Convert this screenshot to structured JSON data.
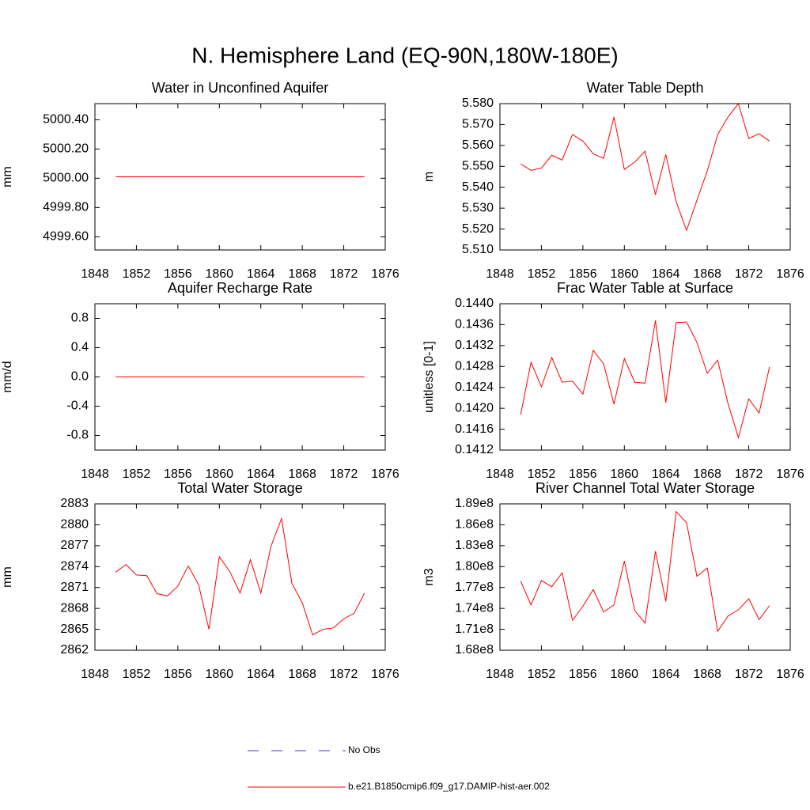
{
  "title": "N. Hemisphere Land (EQ-90N,180W-180E)",
  "legend": [
    {
      "name": "No Obs",
      "color": "#3a3ad0",
      "dashed": true
    },
    {
      "name": "b.e21.B1850cmip6.f09_g17.DAMIP-hist-aer.002",
      "color": "#ff0000",
      "dashed": false
    }
  ],
  "chart_data": [
    {
      "type": "line",
      "title": "Water in Unconfined Aquifer",
      "ylabel": "mm",
      "color": "#ff0000",
      "x": [
        1850,
        1851,
        1852,
        1853,
        1854,
        1855,
        1856,
        1857,
        1858,
        1859,
        1860,
        1861,
        1862,
        1863,
        1864,
        1865,
        1866,
        1867,
        1868,
        1869,
        1870,
        1871,
        1872,
        1873,
        1874
      ],
      "values": [
        5000.01,
        5000.01,
        5000.01,
        5000.01,
        5000.01,
        5000.01,
        5000.01,
        5000.01,
        5000.01,
        5000.01,
        5000.01,
        5000.01,
        5000.01,
        5000.01,
        5000.01,
        5000.01,
        5000.01,
        5000.01,
        5000.01,
        5000.01,
        5000.01,
        5000.01,
        5000.01,
        5000.01,
        5000.01
      ],
      "xlim": [
        1848,
        1876
      ],
      "xticks": [
        1848,
        1852,
        1856,
        1860,
        1864,
        1868,
        1872,
        1876
      ],
      "ylim": [
        4999.51,
        5000.51
      ],
      "yticks": [
        {
          "value": 4999.6,
          "label": "4999.60"
        },
        {
          "value": 4999.8,
          "label": "4999.80"
        },
        {
          "value": 5000,
          "label": "5000.00"
        },
        {
          "value": 5000.2,
          "label": "5000.20"
        },
        {
          "value": 5000.4,
          "label": "5000.40"
        }
      ]
    },
    {
      "type": "line",
      "title": "Water Table Depth",
      "ylabel": "m",
      "color": "#ff0000",
      "x": [
        1850,
        1851,
        1852,
        1853,
        1854,
        1855,
        1856,
        1857,
        1858,
        1859,
        1860,
        1861,
        1862,
        1863,
        1864,
        1865,
        1866,
        1867,
        1868,
        1869,
        1870,
        1871,
        1872,
        1873,
        1874
      ],
      "values": [
        5.5512,
        5.5481,
        5.5492,
        5.5553,
        5.553,
        5.5652,
        5.5621,
        5.556,
        5.5538,
        5.5736,
        5.5485,
        5.552,
        5.5573,
        5.5364,
        5.5557,
        5.533,
        5.5193,
        5.5338,
        5.5478,
        5.5652,
        5.5736,
        5.58,
        5.5633,
        5.5656,
        5.5621
      ],
      "xlim": [
        1848,
        1876
      ],
      "xticks": [
        1848,
        1852,
        1856,
        1860,
        1864,
        1868,
        1872,
        1876
      ],
      "ylim": [
        5.51,
        5.58
      ],
      "yticks": [
        {
          "value": 5.51,
          "label": "5.510"
        },
        {
          "value": 5.52,
          "label": "5.520"
        },
        {
          "value": 5.53,
          "label": "5.530"
        },
        {
          "value": 5.54,
          "label": "5.540"
        },
        {
          "value": 5.55,
          "label": "5.550"
        },
        {
          "value": 5.56,
          "label": "5.560"
        },
        {
          "value": 5.57,
          "label": "5.570"
        },
        {
          "value": 5.58,
          "label": "5.580"
        }
      ]
    },
    {
      "type": "line",
      "title": "Aquifer Recharge Rate",
      "ylabel": "mm/d",
      "color": "#ff0000",
      "x": [
        1850,
        1851,
        1852,
        1853,
        1854,
        1855,
        1856,
        1857,
        1858,
        1859,
        1860,
        1861,
        1862,
        1863,
        1864,
        1865,
        1866,
        1867,
        1868,
        1869,
        1870,
        1871,
        1872,
        1873,
        1874
      ],
      "values": [
        0,
        0,
        0,
        0,
        0,
        0,
        0,
        0,
        0,
        0,
        0,
        0,
        0,
        0,
        0,
        0,
        0,
        0,
        0,
        0,
        0,
        0,
        0,
        0,
        0
      ],
      "xlim": [
        1848,
        1876
      ],
      "xticks": [
        1848,
        1852,
        1856,
        1860,
        1864,
        1868,
        1872,
        1876
      ],
      "ylim": [
        -1,
        1
      ],
      "yticks": [
        -0.8,
        -0.4,
        {
          "value": 0,
          "label": "0.0"
        },
        0.4,
        0.8
      ]
    },
    {
      "type": "line",
      "title": "Frac Water Table at Surface",
      "ylabel": "unitless [0-1]",
      "color": "#ff0000",
      "x": [
        1850,
        1851,
        1852,
        1853,
        1854,
        1855,
        1856,
        1857,
        1858,
        1859,
        1860,
        1861,
        1862,
        1863,
        1864,
        1865,
        1866,
        1867,
        1868,
        1869,
        1870,
        1871,
        1872,
        1873,
        1874
      ],
      "values": [
        0.14188,
        0.14288,
        0.14241,
        0.14297,
        0.1425,
        0.14252,
        0.14227,
        0.14311,
        0.14285,
        0.14208,
        0.14295,
        0.1425,
        0.14248,
        0.14368,
        0.14211,
        0.14364,
        0.14365,
        0.14326,
        0.14267,
        0.14292,
        0.14209,
        0.14144,
        0.14218,
        0.14191,
        0.14279
      ],
      "xlim": [
        1848,
        1876
      ],
      "xticks": [
        1848,
        1852,
        1856,
        1860,
        1864,
        1868,
        1872,
        1876
      ],
      "ylim": [
        0.1412,
        0.144
      ],
      "yticks": [
        {
          "value": 0.1412,
          "label": "0.1412"
        },
        {
          "value": 0.1416,
          "label": "0.1416"
        },
        {
          "value": 0.142,
          "label": "0.1420"
        },
        {
          "value": 0.1424,
          "label": "0.1424"
        },
        {
          "value": 0.1428,
          "label": "0.1428"
        },
        {
          "value": 0.1432,
          "label": "0.1432"
        },
        {
          "value": 0.1436,
          "label": "0.1436"
        },
        {
          "value": 0.144,
          "label": "0.1440"
        }
      ]
    },
    {
      "type": "line",
      "title": "Total Water Storage",
      "ylabel": "mm",
      "color": "#ff0000",
      "x": [
        1850,
        1851,
        1852,
        1853,
        1854,
        1855,
        1856,
        1857,
        1858,
        1859,
        1860,
        1861,
        1862,
        1863,
        1864,
        1865,
        1866,
        1867,
        1868,
        1869,
        1870,
        1871,
        1872,
        1873,
        1874
      ],
      "values": [
        2873.2,
        2874.3,
        2872.8,
        2872.7,
        2870.1,
        2869.8,
        2871.2,
        2874.1,
        2871.4,
        2865.0,
        2875.4,
        2873.3,
        2870.2,
        2875.0,
        2870.2,
        2877.0,
        2880.9,
        2871.6,
        2868.8,
        2864.2,
        2865.0,
        2865.2,
        2866.5,
        2867.3,
        2870.2
      ],
      "xlim": [
        1848,
        1876
      ],
      "xticks": [
        1848,
        1852,
        1856,
        1860,
        1864,
        1868,
        1872,
        1876
      ],
      "ylim": [
        2862,
        2883
      ],
      "yticks": [
        2862,
        2865,
        2868,
        2871,
        2874,
        2877,
        2880,
        2883
      ]
    },
    {
      "type": "line",
      "title": "River Channel Total Water Storage",
      "ylabel": "m3",
      "color": "#ff0000",
      "x": [
        1850,
        1851,
        1852,
        1853,
        1854,
        1855,
        1856,
        1857,
        1858,
        1859,
        1860,
        1861,
        1862,
        1863,
        1864,
        1865,
        1866,
        1867,
        1868,
        1869,
        1870,
        1871,
        1872,
        1873,
        1874
      ],
      "values": [
        177900000,
        174500000,
        178000000,
        177100000,
        179100000,
        172300000,
        174300000,
        176700000,
        173500000,
        174500000,
        180800000,
        173700000,
        171900000,
        182200000,
        175000000,
        187900000,
        186300000,
        178600000,
        179800000,
        170700000,
        172900000,
        173800000,
        175400000,
        172400000,
        174400000
      ],
      "xlim": [
        1848,
        1876
      ],
      "xticks": [
        1848,
        1852,
        1856,
        1860,
        1864,
        1868,
        1872,
        1876
      ],
      "ylim": [
        168000000,
        189000000
      ],
      "yticks": [
        {
          "value": 168000000,
          "label": "1.68e8"
        },
        {
          "value": 171000000,
          "label": "1.71e8"
        },
        {
          "value": 174000000,
          "label": "1.74e8"
        },
        {
          "value": 177000000,
          "label": "1.77e8"
        },
        {
          "value": 180000000,
          "label": "1.80e8"
        },
        {
          "value": 183000000,
          "label": "1.83e8"
        },
        {
          "value": 186000000,
          "label": "1.86e8"
        },
        {
          "value": 189000000,
          "label": "1.89e8"
        }
      ]
    }
  ]
}
